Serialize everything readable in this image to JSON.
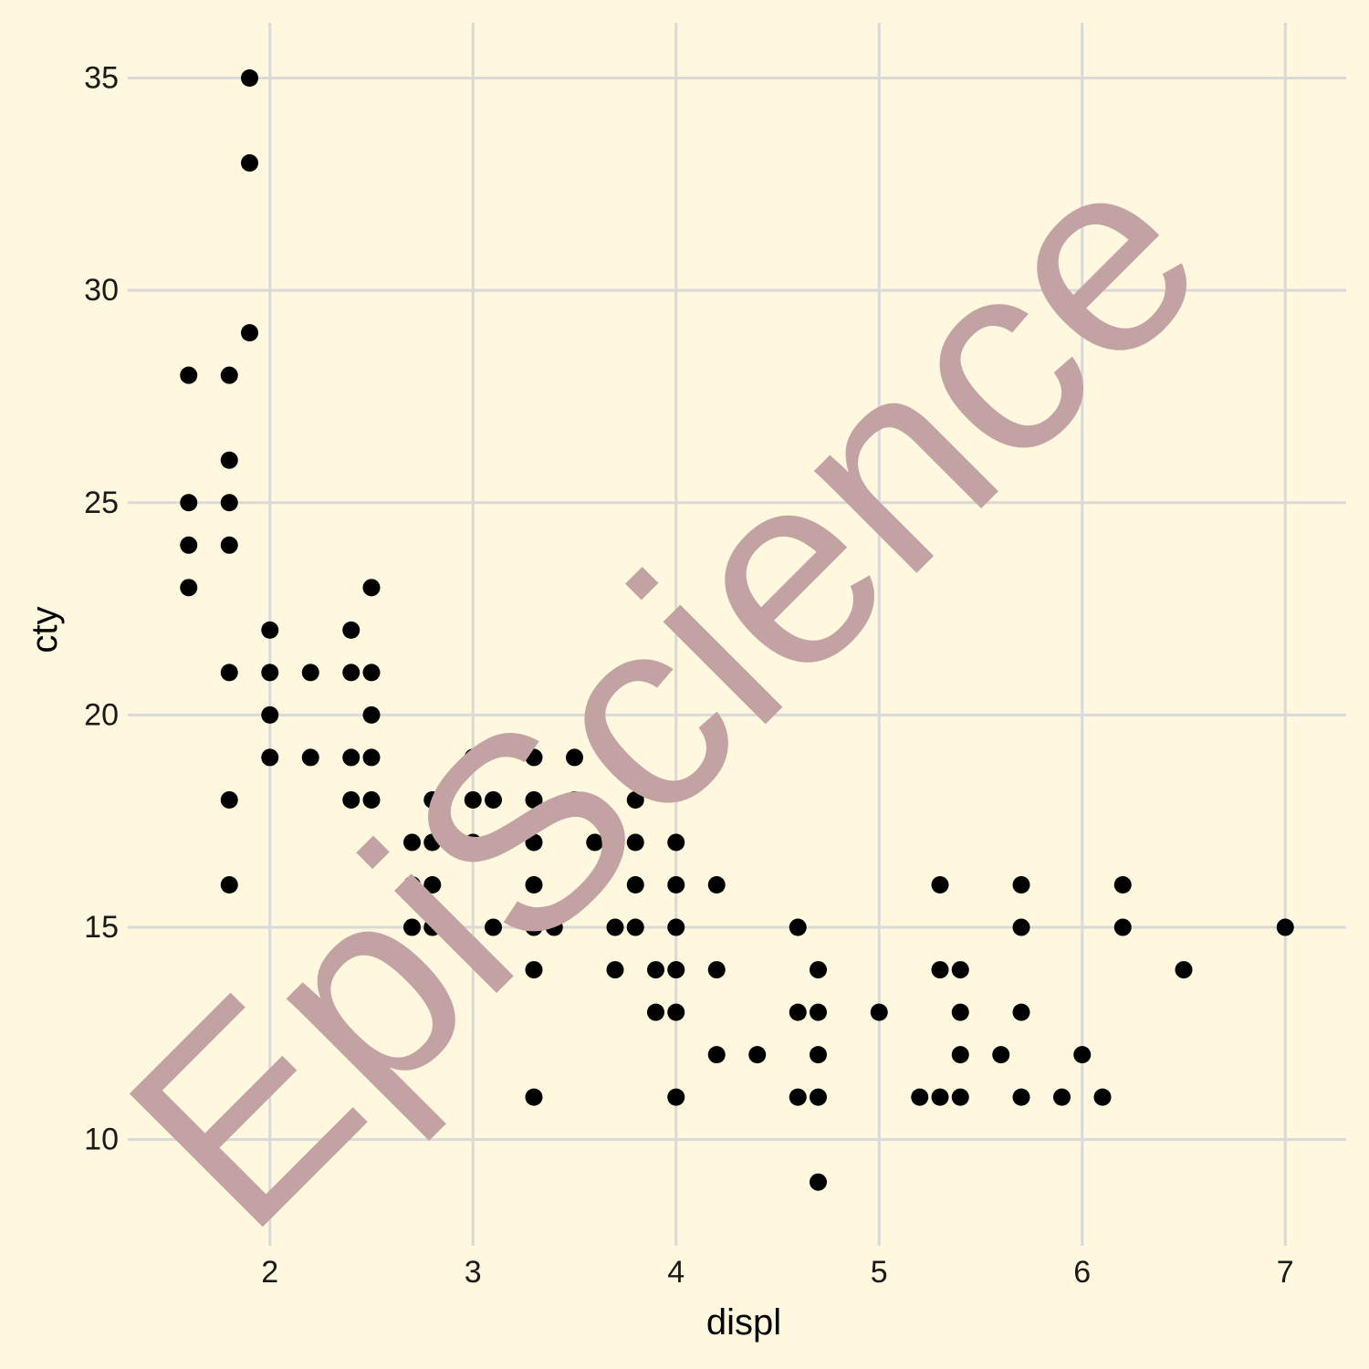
{
  "chart_data": {
    "type": "scatter",
    "xlabel": "displ",
    "ylabel": "cty",
    "xlim": [
      1.3,
      7.3
    ],
    "ylim": [
      7.5,
      36.3
    ],
    "x_ticks": [
      "2",
      "3",
      "4",
      "5",
      "6",
      "7"
    ],
    "y_ticks": [
      "10",
      "15",
      "20",
      "25",
      "30",
      "35"
    ],
    "grid": true,
    "background": "#FFF7DE",
    "gridline_color": "#D9D9D9",
    "point_color": "#000000",
    "watermark_text": "EpiScience",
    "watermark_color": "#C2A2A3",
    "points": [
      [
        1.9,
        35
      ],
      [
        1.9,
        33
      ],
      [
        1.9,
        29
      ],
      [
        1.6,
        28
      ],
      [
        1.6,
        25
      ],
      [
        1.6,
        24
      ],
      [
        1.6,
        23
      ],
      [
        1.8,
        28
      ],
      [
        1.8,
        26
      ],
      [
        1.8,
        25
      ],
      [
        1.8,
        24
      ],
      [
        1.8,
        21
      ],
      [
        1.8,
        18
      ],
      [
        1.8,
        16
      ],
      [
        2.0,
        22
      ],
      [
        2.0,
        21
      ],
      [
        2.0,
        20
      ],
      [
        2.0,
        19
      ],
      [
        2.2,
        21
      ],
      [
        2.2,
        19
      ],
      [
        2.4,
        22
      ],
      [
        2.4,
        21
      ],
      [
        2.4,
        19
      ],
      [
        2.4,
        18
      ],
      [
        2.5,
        23
      ],
      [
        2.5,
        21
      ],
      [
        2.5,
        20
      ],
      [
        2.5,
        19
      ],
      [
        2.5,
        18
      ],
      [
        2.7,
        17
      ],
      [
        2.7,
        16
      ],
      [
        2.7,
        15
      ],
      [
        2.8,
        18
      ],
      [
        2.8,
        17
      ],
      [
        2.8,
        16
      ],
      [
        2.8,
        15
      ],
      [
        3.0,
        19
      ],
      [
        3.0,
        18
      ],
      [
        3.0,
        17
      ],
      [
        3.1,
        18
      ],
      [
        3.1,
        17
      ],
      [
        3.1,
        15
      ],
      [
        3.3,
        19
      ],
      [
        3.3,
        18
      ],
      [
        3.3,
        17
      ],
      [
        3.3,
        16
      ],
      [
        3.3,
        15
      ],
      [
        3.3,
        14
      ],
      [
        3.3,
        11
      ],
      [
        3.4,
        15
      ],
      [
        3.5,
        19
      ],
      [
        3.5,
        18
      ],
      [
        3.6,
        17
      ],
      [
        3.7,
        15
      ],
      [
        3.7,
        14
      ],
      [
        3.8,
        18
      ],
      [
        3.8,
        17
      ],
      [
        3.8,
        16
      ],
      [
        3.8,
        15
      ],
      [
        3.9,
        14
      ],
      [
        3.9,
        13
      ],
      [
        4.0,
        17
      ],
      [
        4.0,
        16
      ],
      [
        4.0,
        15
      ],
      [
        4.0,
        14
      ],
      [
        4.0,
        13
      ],
      [
        4.0,
        11
      ],
      [
        4.2,
        16
      ],
      [
        4.2,
        14
      ],
      [
        4.2,
        12
      ],
      [
        4.4,
        12
      ],
      [
        4.6,
        15
      ],
      [
        4.6,
        13
      ],
      [
        4.6,
        11
      ],
      [
        4.7,
        14
      ],
      [
        4.7,
        13
      ],
      [
        4.7,
        12
      ],
      [
        4.7,
        11
      ],
      [
        4.7,
        9
      ],
      [
        5.0,
        13
      ],
      [
        5.2,
        11
      ],
      [
        5.3,
        16
      ],
      [
        5.3,
        14
      ],
      [
        5.3,
        11
      ],
      [
        5.4,
        14
      ],
      [
        5.4,
        13
      ],
      [
        5.4,
        12
      ],
      [
        5.4,
        11
      ],
      [
        5.6,
        12
      ],
      [
        5.7,
        16
      ],
      [
        5.7,
        15
      ],
      [
        5.7,
        13
      ],
      [
        5.7,
        11
      ],
      [
        5.9,
        11
      ],
      [
        6.0,
        12
      ],
      [
        6.1,
        11
      ],
      [
        6.2,
        16
      ],
      [
        6.2,
        15
      ],
      [
        6.5,
        14
      ],
      [
        7.0,
        15
      ]
    ]
  }
}
